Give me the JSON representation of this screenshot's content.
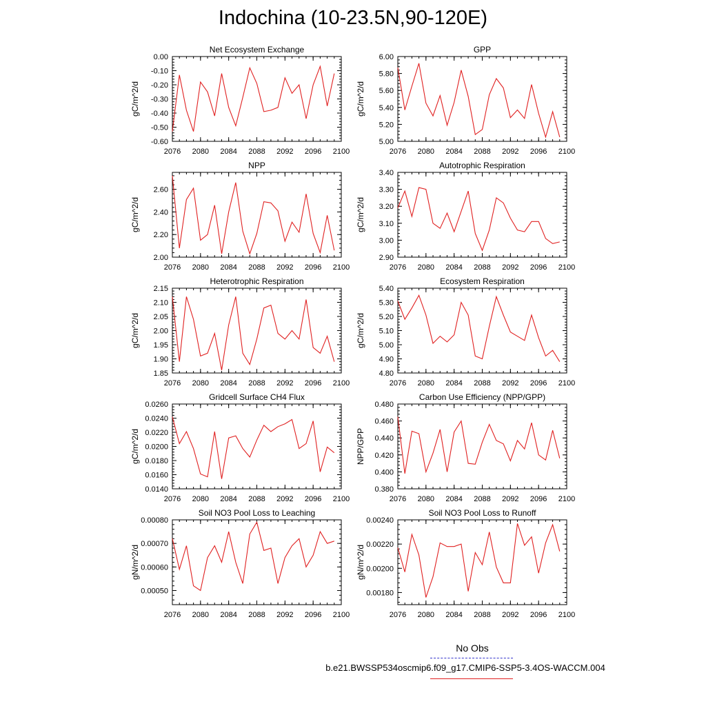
{
  "page": {
    "title": "Indochina (10-23.5N,90-120E)",
    "legend": {
      "obs_label": "No Obs",
      "obs_color": "#3333cc",
      "case_label": "b.e21.BWSSP534oscmip6.f09_g17.CMIP6-SSP5-3.4OS-WACCM.004",
      "case_color": "#e02020"
    }
  },
  "chart_data": [
    {
      "type": "line",
      "title": "Net Ecosystem Exchange",
      "ylabel": "gC/m^2/d",
      "xlabel": "",
      "xlim": [
        2076,
        2100
      ],
      "ylim": [
        -0.6,
        0.0
      ],
      "xticks": [
        "2076",
        "2080",
        "2084",
        "2088",
        "2092",
        "2096",
        "2100"
      ],
      "yticks": [
        "-0.60",
        "-0.50",
        "-0.40",
        "-0.30",
        "-0.20",
        "-0.10",
        "0.00"
      ],
      "x": [
        2076,
        2077,
        2078,
        2079,
        2080,
        2081,
        2082,
        2083,
        2084,
        2085,
        2086,
        2087,
        2088,
        2089,
        2090,
        2091,
        2092,
        2093,
        2094,
        2095,
        2096,
        2097,
        2098,
        2099
      ],
      "series": [
        {
          "color": "#e02020",
          "values": [
            -0.53,
            -0.13,
            -0.38,
            -0.53,
            -0.18,
            -0.25,
            -0.42,
            -0.12,
            -0.36,
            -0.49,
            -0.29,
            -0.08,
            -0.19,
            -0.39,
            -0.38,
            -0.36,
            -0.15,
            -0.26,
            -0.2,
            -0.44,
            -0.2,
            -0.07,
            -0.35,
            -0.12
          ]
        }
      ]
    },
    {
      "type": "line",
      "title": "GPP",
      "ylabel": "gC/m^2/d",
      "xlabel": "",
      "xlim": [
        2076,
        2100
      ],
      "ylim": [
        5.0,
        6.0
      ],
      "xticks": [
        "2076",
        "2080",
        "2084",
        "2088",
        "2092",
        "2096",
        "2100"
      ],
      "yticks": [
        "5.00",
        "5.20",
        "5.40",
        "5.60",
        "5.80",
        "6.00"
      ],
      "x": [
        2076,
        2077,
        2078,
        2079,
        2080,
        2081,
        2082,
        2083,
        2084,
        2085,
        2086,
        2087,
        2088,
        2089,
        2090,
        2091,
        2092,
        2093,
        2094,
        2095,
        2096,
        2097,
        2098,
        2099
      ],
      "series": [
        {
          "color": "#e02020",
          "values": [
            5.87,
            5.37,
            5.65,
            5.92,
            5.45,
            5.3,
            5.54,
            5.19,
            5.46,
            5.84,
            5.53,
            5.08,
            5.14,
            5.55,
            5.74,
            5.63,
            5.28,
            5.37,
            5.27,
            5.67,
            5.33,
            5.05,
            5.35,
            5.05
          ]
        }
      ]
    },
    {
      "type": "line",
      "title": "NPP",
      "ylabel": "gC/m^2/d",
      "xlabel": "",
      "xlim": [
        2076,
        2100
      ],
      "ylim": [
        2.0,
        2.75
      ],
      "xticks": [
        "2076",
        "2080",
        "2084",
        "2088",
        "2092",
        "2096",
        "2100"
      ],
      "yticks": [
        "2.00",
        "2.20",
        "2.40",
        "2.60"
      ],
      "x": [
        2076,
        2077,
        2078,
        2079,
        2080,
        2081,
        2082,
        2083,
        2084,
        2085,
        2086,
        2087,
        2088,
        2089,
        2090,
        2091,
        2092,
        2093,
        2094,
        2095,
        2096,
        2097,
        2098,
        2099
      ],
      "series": [
        {
          "color": "#e02020",
          "values": [
            2.72,
            2.08,
            2.51,
            2.61,
            2.15,
            2.2,
            2.46,
            2.03,
            2.4,
            2.66,
            2.23,
            2.03,
            2.21,
            2.49,
            2.48,
            2.41,
            2.14,
            2.31,
            2.22,
            2.56,
            2.21,
            2.04,
            2.37,
            2.06
          ]
        }
      ]
    },
    {
      "type": "line",
      "title": "Autotrophic Respiration",
      "ylabel": "gC/m^2/d",
      "xlabel": "",
      "xlim": [
        2076,
        2100
      ],
      "ylim": [
        2.9,
        3.4
      ],
      "xticks": [
        "2076",
        "2080",
        "2084",
        "2088",
        "2092",
        "2096",
        "2100"
      ],
      "yticks": [
        "2.90",
        "3.00",
        "3.10",
        "3.20",
        "3.30",
        "3.40"
      ],
      "x": [
        2076,
        2077,
        2078,
        2079,
        2080,
        2081,
        2082,
        2083,
        2084,
        2085,
        2086,
        2087,
        2088,
        2089,
        2090,
        2091,
        2092,
        2093,
        2094,
        2095,
        2096,
        2097,
        2098,
        2099
      ],
      "series": [
        {
          "color": "#e02020",
          "values": [
            3.19,
            3.29,
            3.14,
            3.31,
            3.3,
            3.1,
            3.07,
            3.16,
            3.05,
            3.17,
            3.29,
            3.04,
            2.94,
            3.06,
            3.25,
            3.22,
            3.13,
            3.06,
            3.05,
            3.11,
            3.11,
            3.01,
            2.98,
            2.99
          ]
        }
      ]
    },
    {
      "type": "line",
      "title": "Heterotrophic Respiration",
      "ylabel": "gC/m^2/d",
      "xlabel": "",
      "xlim": [
        2076,
        2100
      ],
      "ylim": [
        1.85,
        2.15
      ],
      "xticks": [
        "2076",
        "2080",
        "2084",
        "2088",
        "2092",
        "2096",
        "2100"
      ],
      "yticks": [
        "1.85",
        "1.90",
        "1.95",
        "2.00",
        "2.05",
        "2.10",
        "2.15"
      ],
      "x": [
        2076,
        2077,
        2078,
        2079,
        2080,
        2081,
        2082,
        2083,
        2084,
        2085,
        2086,
        2087,
        2088,
        2089,
        2090,
        2091,
        2092,
        2093,
        2094,
        2095,
        2096,
        2097,
        2098,
        2099
      ],
      "series": [
        {
          "color": "#e02020",
          "values": [
            2.12,
            1.89,
            2.12,
            2.04,
            1.91,
            1.92,
            1.99,
            1.86,
            2.02,
            2.12,
            1.92,
            1.88,
            1.97,
            2.08,
            2.09,
            1.99,
            1.97,
            2.0,
            1.97,
            2.11,
            1.94,
            1.92,
            1.98,
            1.89
          ]
        }
      ]
    },
    {
      "type": "line",
      "title": "Ecosystem Respiration",
      "ylabel": "gC/m^2/d",
      "xlabel": "",
      "xlim": [
        2076,
        2100
      ],
      "ylim": [
        4.8,
        5.4
      ],
      "xticks": [
        "2076",
        "2080",
        "2084",
        "2088",
        "2092",
        "2096",
        "2100"
      ],
      "yticks": [
        "4.80",
        "4.90",
        "5.00",
        "5.10",
        "5.20",
        "5.30",
        "5.40"
      ],
      "x": [
        2076,
        2077,
        2078,
        2079,
        2080,
        2081,
        2082,
        2083,
        2084,
        2085,
        2086,
        2087,
        2088,
        2089,
        2090,
        2091,
        2092,
        2093,
        2094,
        2095,
        2096,
        2097,
        2098,
        2099
      ],
      "series": [
        {
          "color": "#e02020",
          "values": [
            5.31,
            5.18,
            5.26,
            5.35,
            5.21,
            5.01,
            5.06,
            5.02,
            5.07,
            5.3,
            5.21,
            4.92,
            4.9,
            5.13,
            5.34,
            5.21,
            5.09,
            5.06,
            5.03,
            5.21,
            5.05,
            4.92,
            4.96,
            4.88
          ]
        }
      ]
    },
    {
      "type": "line",
      "title": "Gridcell Surface CH4 Flux",
      "ylabel": "gC/m^2/d",
      "xlabel": "",
      "xlim": [
        2076,
        2100
      ],
      "ylim": [
        0.014,
        0.026
      ],
      "xticks": [
        "2076",
        "2080",
        "2084",
        "2088",
        "2092",
        "2096",
        "2100"
      ],
      "yticks": [
        "0.0140",
        "0.0160",
        "0.0180",
        "0.0200",
        "0.0220",
        "0.0240",
        "0.0260"
      ],
      "x": [
        2076,
        2077,
        2078,
        2079,
        2080,
        2081,
        2082,
        2083,
        2084,
        2085,
        2086,
        2087,
        2088,
        2089,
        2090,
        2091,
        2092,
        2093,
        2094,
        2095,
        2096,
        2097,
        2098,
        2099
      ],
      "series": [
        {
          "color": "#e02020",
          "values": [
            0.0242,
            0.0204,
            0.0221,
            0.0197,
            0.0161,
            0.0157,
            0.0221,
            0.0154,
            0.0212,
            0.0215,
            0.0197,
            0.0185,
            0.0209,
            0.023,
            0.0221,
            0.0228,
            0.0232,
            0.0238,
            0.0197,
            0.0204,
            0.0236,
            0.0164,
            0.0199,
            0.0191
          ]
        }
      ]
    },
    {
      "type": "line",
      "title": "Carbon Use Efficiency (NPP/GPP)",
      "ylabel": "NPP/GPP",
      "xlabel": "",
      "xlim": [
        2076,
        2100
      ],
      "ylim": [
        0.38,
        0.48
      ],
      "xticks": [
        "2076",
        "2080",
        "2084",
        "2088",
        "2092",
        "2096",
        "2100"
      ],
      "yticks": [
        "0.380",
        "0.400",
        "0.420",
        "0.440",
        "0.460",
        "0.480"
      ],
      "x": [
        2076,
        2077,
        2078,
        2079,
        2080,
        2081,
        2082,
        2083,
        2084,
        2085,
        2086,
        2087,
        2088,
        2089,
        2090,
        2091,
        2092,
        2093,
        2094,
        2095,
        2096,
        2097,
        2098,
        2099
      ],
      "series": [
        {
          "color": "#e02020",
          "values": [
            0.465,
            0.398,
            0.448,
            0.445,
            0.4,
            0.422,
            0.45,
            0.4,
            0.447,
            0.46,
            0.41,
            0.409,
            0.435,
            0.456,
            0.437,
            0.433,
            0.413,
            0.437,
            0.427,
            0.458,
            0.42,
            0.414,
            0.449,
            0.416
          ]
        }
      ]
    },
    {
      "type": "line",
      "title": "Soil NO3 Pool Loss to Leaching",
      "ylabel": "gN/m^2/d",
      "xlabel": "",
      "xlim": [
        2076,
        2100
      ],
      "ylim": [
        0.00044,
        0.0008
      ],
      "xticks": [
        "2076",
        "2080",
        "2084",
        "2088",
        "2092",
        "2096",
        "2100"
      ],
      "yticks": [
        "0.00050",
        "0.00060",
        "0.00070",
        "0.00080"
      ],
      "x": [
        2076,
        2077,
        2078,
        2079,
        2080,
        2081,
        2082,
        2083,
        2084,
        2085,
        2086,
        2087,
        2088,
        2089,
        2090,
        2091,
        2092,
        2093,
        2094,
        2095,
        2096,
        2097,
        2098,
        2099
      ],
      "series": [
        {
          "color": "#e02020",
          "values": [
            0.00072,
            0.00059,
            0.00069,
            0.00052,
            0.0005,
            0.00064,
            0.00069,
            0.00062,
            0.00075,
            0.00062,
            0.00053,
            0.00074,
            0.00079,
            0.00067,
            0.00068,
            0.00053,
            0.00064,
            0.00069,
            0.00072,
            0.0006,
            0.00065,
            0.00075,
            0.0007,
            0.00071
          ]
        }
      ]
    },
    {
      "type": "line",
      "title": "Soil NO3 Pool Loss to Runoff",
      "ylabel": "gN/m^2/d",
      "xlabel": "",
      "xlim": [
        2076,
        2100
      ],
      "ylim": [
        0.0017,
        0.0024
      ],
      "xticks": [
        "2076",
        "2080",
        "2084",
        "2088",
        "2092",
        "2096",
        "2100"
      ],
      "yticks": [
        "0.00180",
        "0.00200",
        "0.00220",
        "0.00240"
      ],
      "x": [
        2076,
        2077,
        2078,
        2079,
        2080,
        2081,
        2082,
        2083,
        2084,
        2085,
        2086,
        2087,
        2088,
        2089,
        2090,
        2091,
        2092,
        2093,
        2094,
        2095,
        2096,
        2097,
        2098,
        2099
      ],
      "series": [
        {
          "color": "#e02020",
          "values": [
            0.00217,
            0.00197,
            0.00228,
            0.00211,
            0.00176,
            0.00193,
            0.00221,
            0.00218,
            0.00218,
            0.0022,
            0.00181,
            0.00213,
            0.00203,
            0.0023,
            0.00201,
            0.00188,
            0.00188,
            0.00237,
            0.00219,
            0.00226,
            0.00196,
            0.00221,
            0.00236,
            0.00214
          ]
        }
      ]
    }
  ]
}
